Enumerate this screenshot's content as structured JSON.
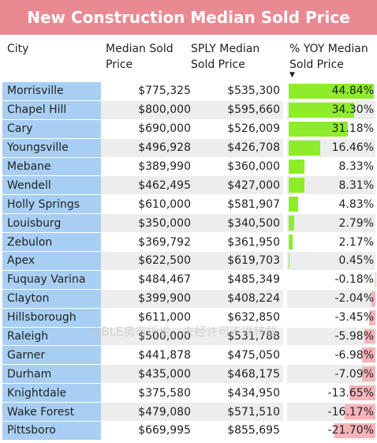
{
  "title": "New Construction Median Sold Price",
  "columns": {
    "city": "City",
    "median_line1": "Median Sold",
    "median_line2": "Price",
    "sply_line1": "SPLY Median",
    "sply_line2": "Sold Price",
    "yoy_line1": "% YOY Median",
    "yoy_line2": "Sold Price"
  },
  "sort_indicator": "▼",
  "watermark": "ABLE房市折说，未经许可不得转载",
  "colors": {
    "title_bg": "#e98a93",
    "city_bg": "#a8cff3",
    "positive_bar": "#8ded2b",
    "negative_bar": "#f5b3ba"
  },
  "rows": [
    {
      "city": "Morrisville",
      "median": "$775,325",
      "sply": "$535,300",
      "yoy": "44.84%",
      "yoy_value": 44.84
    },
    {
      "city": "Chapel Hill",
      "median": "$800,000",
      "sply": "$595,660",
      "yoy": "34.30%",
      "yoy_value": 34.3
    },
    {
      "city": "Cary",
      "median": "$690,000",
      "sply": "$526,009",
      "yoy": "31.18%",
      "yoy_value": 31.18
    },
    {
      "city": "Youngsville",
      "median": "$496,928",
      "sply": "$426,708",
      "yoy": "16.46%",
      "yoy_value": 16.46
    },
    {
      "city": "Mebane",
      "median": "$389,990",
      "sply": "$360,000",
      "yoy": "8.33%",
      "yoy_value": 8.33
    },
    {
      "city": "Wendell",
      "median": "$462,495",
      "sply": "$427,000",
      "yoy": "8.31%",
      "yoy_value": 8.31
    },
    {
      "city": "Holly Springs",
      "median": "$610,000",
      "sply": "$581,907",
      "yoy": "4.83%",
      "yoy_value": 4.83
    },
    {
      "city": "Louisburg",
      "median": "$350,000",
      "sply": "$340,500",
      "yoy": "2.79%",
      "yoy_value": 2.79
    },
    {
      "city": "Zebulon",
      "median": "$369,792",
      "sply": "$361,950",
      "yoy": "2.17%",
      "yoy_value": 2.17
    },
    {
      "city": "Apex",
      "median": "$622,500",
      "sply": "$619,703",
      "yoy": "0.45%",
      "yoy_value": 0.45
    },
    {
      "city": "Fuquay Varina",
      "median": "$484,467",
      "sply": "$485,349",
      "yoy": "-0.18%",
      "yoy_value": -0.18
    },
    {
      "city": "Clayton",
      "median": "$399,900",
      "sply": "$408,224",
      "yoy": "-2.04%",
      "yoy_value": -2.04
    },
    {
      "city": "Hillsborough",
      "median": "$611,000",
      "sply": "$632,850",
      "yoy": "-3.45%",
      "yoy_value": -3.45
    },
    {
      "city": "Raleigh",
      "median": "$500,000",
      "sply": "$531,788",
      "yoy": "-5.98%",
      "yoy_value": -5.98
    },
    {
      "city": "Garner",
      "median": "$441,878",
      "sply": "$475,050",
      "yoy": "-6.98%",
      "yoy_value": -6.98
    },
    {
      "city": "Durham",
      "median": "$435,000",
      "sply": "$468,175",
      "yoy": "-7.09%",
      "yoy_value": -7.09
    },
    {
      "city": "Knightdale",
      "median": "$375,580",
      "sply": "$434,950",
      "yoy": "-13.65%",
      "yoy_value": -13.65
    },
    {
      "city": "Wake Forest",
      "median": "$479,080",
      "sply": "$571,510",
      "yoy": "-16.17%",
      "yoy_value": -16.17
    },
    {
      "city": "Pittsboro",
      "median": "$669,995",
      "sply": "$855,695",
      "yoy": "-21.70%",
      "yoy_value": -21.7
    }
  ]
}
